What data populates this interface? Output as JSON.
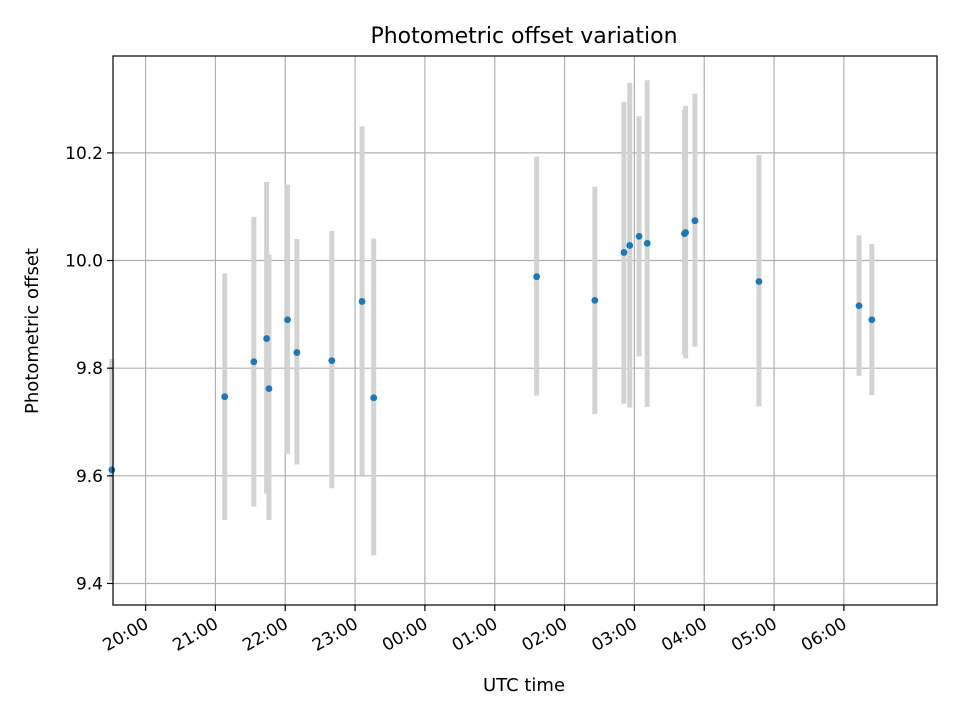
{
  "chart_data": {
    "type": "scatter",
    "title": "Photometric offset variation",
    "xlabel": "UTC time",
    "ylabel": "Photometric offset",
    "grid": true,
    "legend": "none",
    "x_tick_format": "HH:MM",
    "x_ticks": [
      "20:00",
      "21:00",
      "22:00",
      "23:00",
      "00:00",
      "01:00",
      "02:00",
      "03:00",
      "04:00",
      "05:00",
      "06:00"
    ],
    "y_ticks": [
      9.4,
      9.6,
      9.8,
      10.0,
      10.2
    ],
    "xlim": [
      "19:32",
      "07:20"
    ],
    "ylim": [
      9.36,
      10.38
    ],
    "colors": {
      "point": "#1f77b4",
      "errorbar": "#d3d3d3",
      "grid": "#b0b0b0"
    },
    "series": [
      {
        "points": [
          {
            "x": "19:31",
            "y": 9.611,
            "ylow": 9.405,
            "yhigh": 9.817
          },
          {
            "x": "21:08",
            "y": 9.747,
            "ylow": 9.518,
            "yhigh": 9.976
          },
          {
            "x": "21:33",
            "y": 9.812,
            "ylow": 9.543,
            "yhigh": 10.081
          },
          {
            "x": "21:44",
            "y": 9.855,
            "ylow": 9.567,
            "yhigh": 10.146
          },
          {
            "x": "21:46",
            "y": 9.762,
            "ylow": 9.518,
            "yhigh": 10.011
          },
          {
            "x": "22:02",
            "y": 9.89,
            "ylow": 9.641,
            "yhigh": 10.141
          },
          {
            "x": "22:10",
            "y": 9.829,
            "ylow": 9.621,
            "yhigh": 10.04
          },
          {
            "x": "22:40",
            "y": 9.814,
            "ylow": 9.577,
            "yhigh": 10.055
          },
          {
            "x": "23:06",
            "y": 9.924,
            "ylow": 9.601,
            "yhigh": 10.249
          },
          {
            "x": "23:16",
            "y": 9.745,
            "ylow": 9.452,
            "yhigh": 10.041
          },
          {
            "x": "01:36",
            "y": 9.97,
            "ylow": 9.749,
            "yhigh": 10.193
          },
          {
            "x": "02:26",
            "y": 9.926,
            "ylow": 9.715,
            "yhigh": 10.137
          },
          {
            "x": "02:51",
            "y": 10.015,
            "ylow": 9.734,
            "yhigh": 10.295
          },
          {
            "x": "02:56",
            "y": 10.028,
            "ylow": 9.727,
            "yhigh": 10.33
          },
          {
            "x": "03:04",
            "y": 10.045,
            "ylow": 9.822,
            "yhigh": 10.268
          },
          {
            "x": "03:11",
            "y": 10.032,
            "ylow": 9.728,
            "yhigh": 10.335
          },
          {
            "x": "03:43",
            "y": 10.05,
            "ylow": 9.825,
            "yhigh": 10.28
          },
          {
            "x": "03:44",
            "y": 10.052,
            "ylow": 9.818,
            "yhigh": 10.287
          },
          {
            "x": "03:52",
            "y": 10.074,
            "ylow": 9.84,
            "yhigh": 10.31
          },
          {
            "x": "04:47",
            "y": 9.961,
            "ylow": 9.729,
            "yhigh": 10.196
          },
          {
            "x": "06:13",
            "y": 9.916,
            "ylow": 9.786,
            "yhigh": 10.047
          },
          {
            "x": "06:24",
            "y": 9.89,
            "ylow": 9.75,
            "yhigh": 10.031
          }
        ]
      }
    ]
  }
}
